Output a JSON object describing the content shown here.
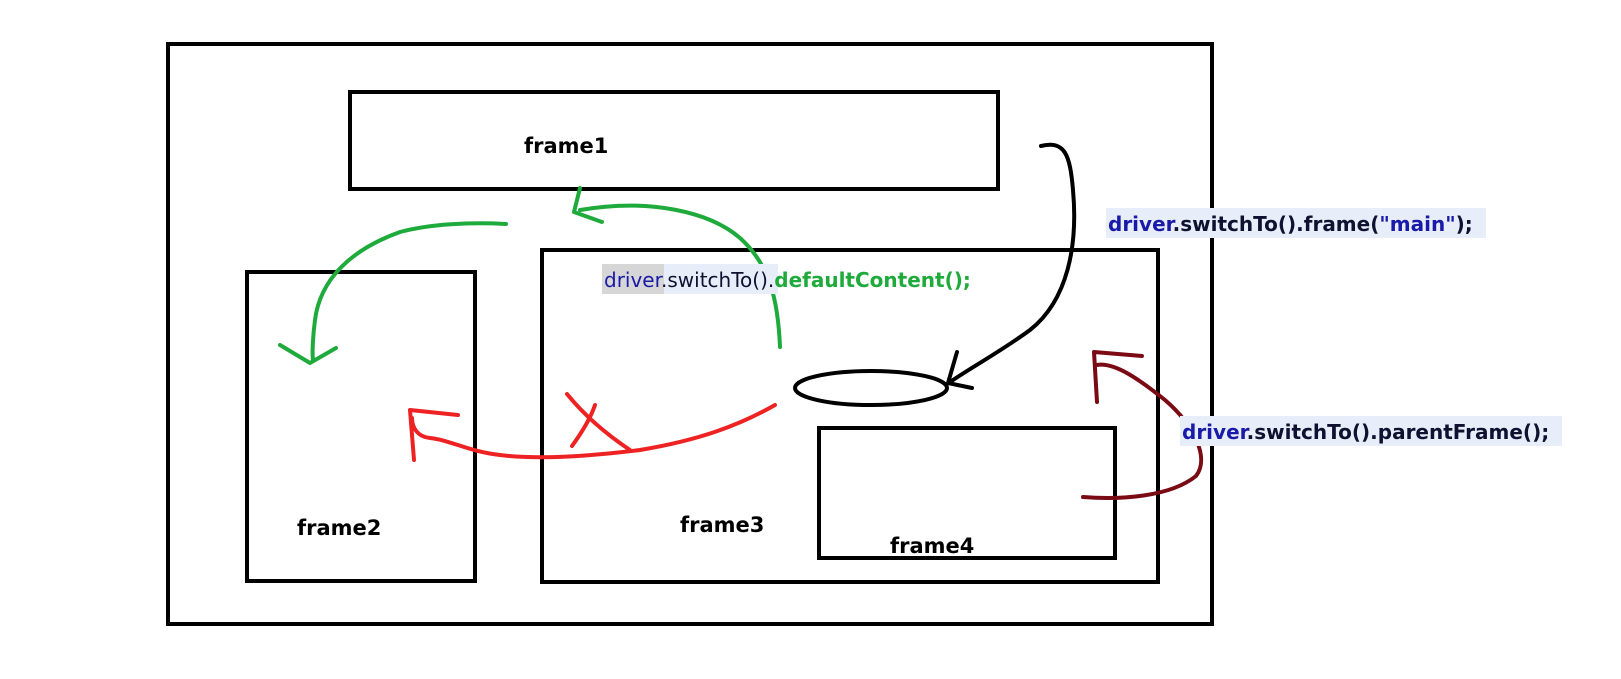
{
  "frames": {
    "frame1": "frame1",
    "frame2": "frame2",
    "frame3": "frame3",
    "frame4": "frame4"
  },
  "calls": {
    "frame_main": {
      "obj": "driver",
      "method": ".switchTo().frame(",
      "arg": "\"main\"",
      "end": ");"
    },
    "parent_frame": {
      "obj": "driver",
      "method": ".switchTo().parentFrame();"
    },
    "default_content": {
      "obj": "driver",
      "method": ".switchTo().",
      "call": "defaultContent();"
    }
  },
  "marks": {
    "cross": "X"
  },
  "colors": {
    "frame_label": "#8b0a1e",
    "code_object": "#1a1aa8",
    "code_text": "#101030",
    "code_highlight": "#e8eef9",
    "green_arrow": "#1faa3c",
    "red_arrow": "#ee2222",
    "maroon_arrow": "#7a0a14",
    "black_arrow": "#000000"
  }
}
